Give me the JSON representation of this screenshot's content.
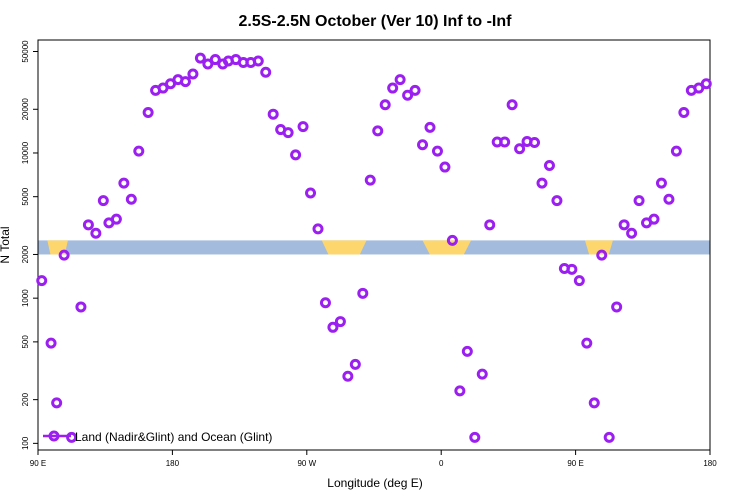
{
  "chart_data": {
    "type": "scatter",
    "title": "2.5S-2.5N October (Ver 10)   Inf to -Inf",
    "xlabel": "Longitude (deg E)",
    "ylabel": "N Total",
    "x_scale": "linear",
    "y_scale": "log",
    "xlim": [
      0,
      360
    ],
    "ylim": [
      90,
      60000
    ],
    "x_ticks": [
      {
        "pos": 0,
        "label": "90 E"
      },
      {
        "pos": 72,
        "label": "180"
      },
      {
        "pos": 144,
        "label": "90 W"
      },
      {
        "pos": 216,
        "label": "0"
      },
      {
        "pos": 288,
        "label": "90 E"
      },
      {
        "pos": 360,
        "label": "180"
      }
    ],
    "y_ticks": [
      100,
      200,
      500,
      1000,
      2000,
      5000,
      10000,
      20000,
      50000
    ],
    "land_ocean_band": {
      "y_range": [
        2000,
        2500
      ],
      "ocean_color": "#a3bbdc",
      "land_color": "#fdd66e",
      "land_segments": [
        [
          5,
          16
        ],
        [
          152,
          176
        ],
        [
          206,
          232
        ],
        [
          293,
          308
        ]
      ]
    },
    "series": [
      {
        "name": "Land (Nadir&Glint) and Ocean (Glint)",
        "color": "#9b1ff0",
        "marker": "open-circle",
        "points": [
          [
            2,
            1320
          ],
          [
            7,
            490
          ],
          [
            10,
            190
          ],
          [
            14,
            1980
          ],
          [
            18,
            110
          ],
          [
            23,
            870
          ],
          [
            27,
            3200
          ],
          [
            31,
            2800
          ],
          [
            35,
            4700
          ],
          [
            38,
            3300
          ],
          [
            42,
            3500
          ],
          [
            46,
            6200
          ],
          [
            50,
            4800
          ],
          [
            54,
            10300
          ],
          [
            59,
            19000
          ],
          [
            63,
            27000
          ],
          [
            67,
            28000
          ],
          [
            71,
            30000
          ],
          [
            75,
            32000
          ],
          [
            79,
            31000
          ],
          [
            83,
            35000
          ],
          [
            87,
            45000
          ],
          [
            91,
            41000
          ],
          [
            95,
            44000
          ],
          [
            99,
            41000
          ],
          [
            102,
            43000
          ],
          [
            106,
            44000
          ],
          [
            110,
            42000
          ],
          [
            114,
            42000
          ],
          [
            118,
            43000
          ],
          [
            122,
            36000
          ],
          [
            126,
            18500
          ],
          [
            130,
            14500
          ],
          [
            134,
            13800
          ],
          [
            138,
            9700
          ],
          [
            142,
            15200
          ],
          [
            146,
            5300
          ],
          [
            150,
            3000
          ],
          [
            154,
            930
          ],
          [
            158,
            630
          ],
          [
            162,
            690
          ],
          [
            166,
            290
          ],
          [
            170,
            350
          ],
          [
            174,
            1080
          ],
          [
            178,
            6500
          ],
          [
            182,
            14200
          ],
          [
            186,
            21500
          ],
          [
            190,
            28000
          ],
          [
            194,
            32000
          ],
          [
            198,
            25000
          ],
          [
            202,
            27000
          ],
          [
            206,
            11400
          ],
          [
            210,
            15000
          ],
          [
            214,
            10300
          ],
          [
            218,
            8000
          ],
          [
            222,
            2500
          ],
          [
            226,
            230
          ],
          [
            230,
            430
          ],
          [
            234,
            110
          ],
          [
            238,
            300
          ],
          [
            242,
            3200
          ],
          [
            246,
            11900
          ],
          [
            250,
            11900
          ],
          [
            254,
            21500
          ],
          [
            258,
            10700
          ],
          [
            262,
            12000
          ],
          [
            266,
            11800
          ],
          [
            270,
            6200
          ],
          [
            274,
            8200
          ],
          [
            278,
            4700
          ],
          [
            282,
            1600
          ],
          [
            286,
            1580
          ],
          [
            290,
            1320
          ],
          [
            294,
            490
          ],
          [
            298,
            190
          ],
          [
            302,
            1980
          ],
          [
            306,
            110
          ],
          [
            310,
            870
          ],
          [
            314,
            3200
          ],
          [
            318,
            2800
          ],
          [
            322,
            4700
          ],
          [
            326,
            3300
          ],
          [
            330,
            3500
          ],
          [
            334,
            6200
          ],
          [
            338,
            4800
          ],
          [
            342,
            10300
          ],
          [
            346,
            19000
          ],
          [
            350,
            27000
          ],
          [
            354,
            28000
          ],
          [
            358,
            30000
          ]
        ]
      }
    ],
    "legend": {
      "position": "bottom-left",
      "entries": [
        "Land (Nadir&Glint) and Ocean (Glint)"
      ]
    }
  }
}
